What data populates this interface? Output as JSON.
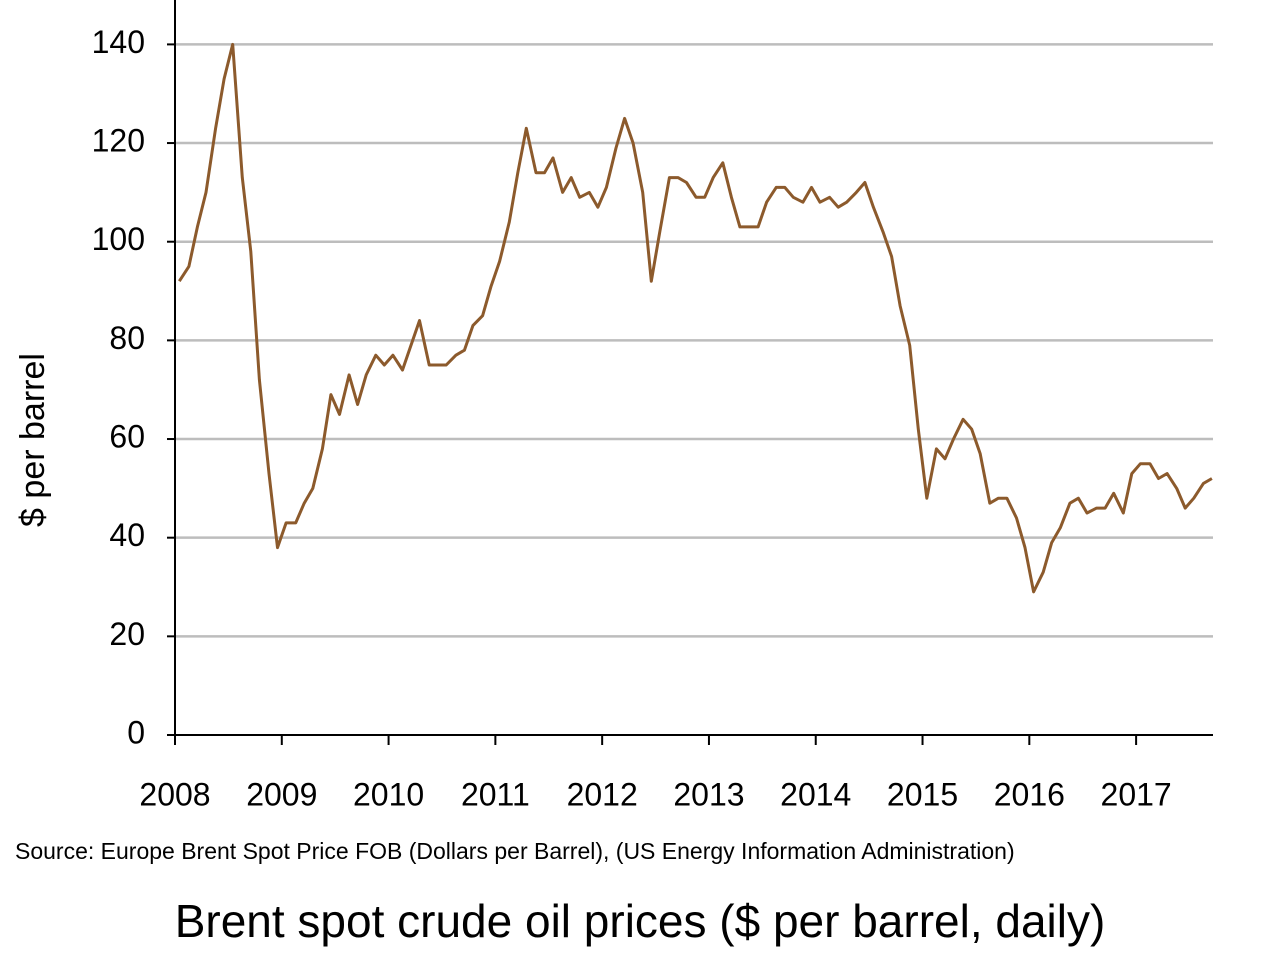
{
  "chart_data": {
    "type": "line",
    "title": "Brent spot crude oil prices ($ per barrel, daily)",
    "source": "Source: Europe Brent Spot Price FOB (Dollars per Barrel), (US Energy Information Administration)",
    "ylabel": "$ per barrel",
    "color": "#8c5a2c",
    "grid": true,
    "xlim": [
      2008,
      2017.72
    ],
    "xticks": [
      2008,
      2009,
      2010,
      2011,
      2012,
      2013,
      2014,
      2015,
      2016,
      2017
    ],
    "ylim": [
      0,
      149
    ],
    "yticks": [
      0,
      20,
      40,
      60,
      80,
      100,
      120,
      140
    ],
    "x": [
      2008.04,
      2008.13,
      2008.21,
      2008.29,
      2008.38,
      2008.46,
      2008.54,
      2008.63,
      2008.71,
      2008.79,
      2008.88,
      2008.96,
      2009.04,
      2009.13,
      2009.21,
      2009.29,
      2009.38,
      2009.46,
      2009.54,
      2009.63,
      2009.71,
      2009.79,
      2009.88,
      2009.96,
      2010.04,
      2010.13,
      2010.21,
      2010.29,
      2010.38,
      2010.46,
      2010.54,
      2010.63,
      2010.71,
      2010.79,
      2010.88,
      2010.96,
      2011.04,
      2011.13,
      2011.21,
      2011.29,
      2011.38,
      2011.46,
      2011.54,
      2011.63,
      2011.71,
      2011.79,
      2011.88,
      2011.96,
      2012.04,
      2012.13,
      2012.21,
      2012.29,
      2012.38,
      2012.46,
      2012.54,
      2012.63,
      2012.71,
      2012.79,
      2012.88,
      2012.96,
      2013.04,
      2013.13,
      2013.21,
      2013.29,
      2013.38,
      2013.46,
      2013.54,
      2013.63,
      2013.71,
      2013.79,
      2013.88,
      2013.96,
      2014.04,
      2014.13,
      2014.21,
      2014.29,
      2014.38,
      2014.46,
      2014.54,
      2014.63,
      2014.71,
      2014.79,
      2014.88,
      2014.96,
      2015.04,
      2015.13,
      2015.21,
      2015.29,
      2015.38,
      2015.46,
      2015.54,
      2015.63,
      2015.71,
      2015.79,
      2015.88,
      2015.96,
      2016.04,
      2016.13,
      2016.21,
      2016.29,
      2016.38,
      2016.46,
      2016.54,
      2016.63,
      2016.71,
      2016.79,
      2016.88,
      2016.96,
      2017.04,
      2017.13,
      2017.21,
      2017.29,
      2017.38,
      2017.46,
      2017.54,
      2017.63,
      2017.71
    ],
    "values": [
      92,
      95,
      103,
      110,
      123,
      133,
      140,
      113,
      98,
      72,
      53,
      38,
      43,
      43,
      47,
      50,
      58,
      69,
      65,
      73,
      67,
      73,
      77,
      75,
      77,
      74,
      79,
      84,
      75,
      75,
      75,
      77,
      78,
      83,
      85,
      91,
      96,
      104,
      114,
      123,
      114,
      114,
      117,
      110,
      113,
      109,
      110,
      107,
      111,
      119,
      125,
      120,
      110,
      92,
      102,
      113,
      113,
      112,
      109,
      109,
      113,
      116,
      109,
      103,
      103,
      103,
      108,
      111,
      111,
      109,
      108,
      111,
      108,
      109,
      107,
      108,
      110,
      112,
      107,
      102,
      97,
      87,
      79,
      62,
      48,
      58,
      56,
      60,
      64,
      62,
      57,
      47,
      48,
      48,
      44,
      38,
      29,
      33,
      39,
      42,
      47,
      48,
      45,
      46,
      46,
      49,
      45,
      53,
      55,
      55,
      52,
      53,
      50,
      46,
      48,
      51,
      52
    ]
  }
}
